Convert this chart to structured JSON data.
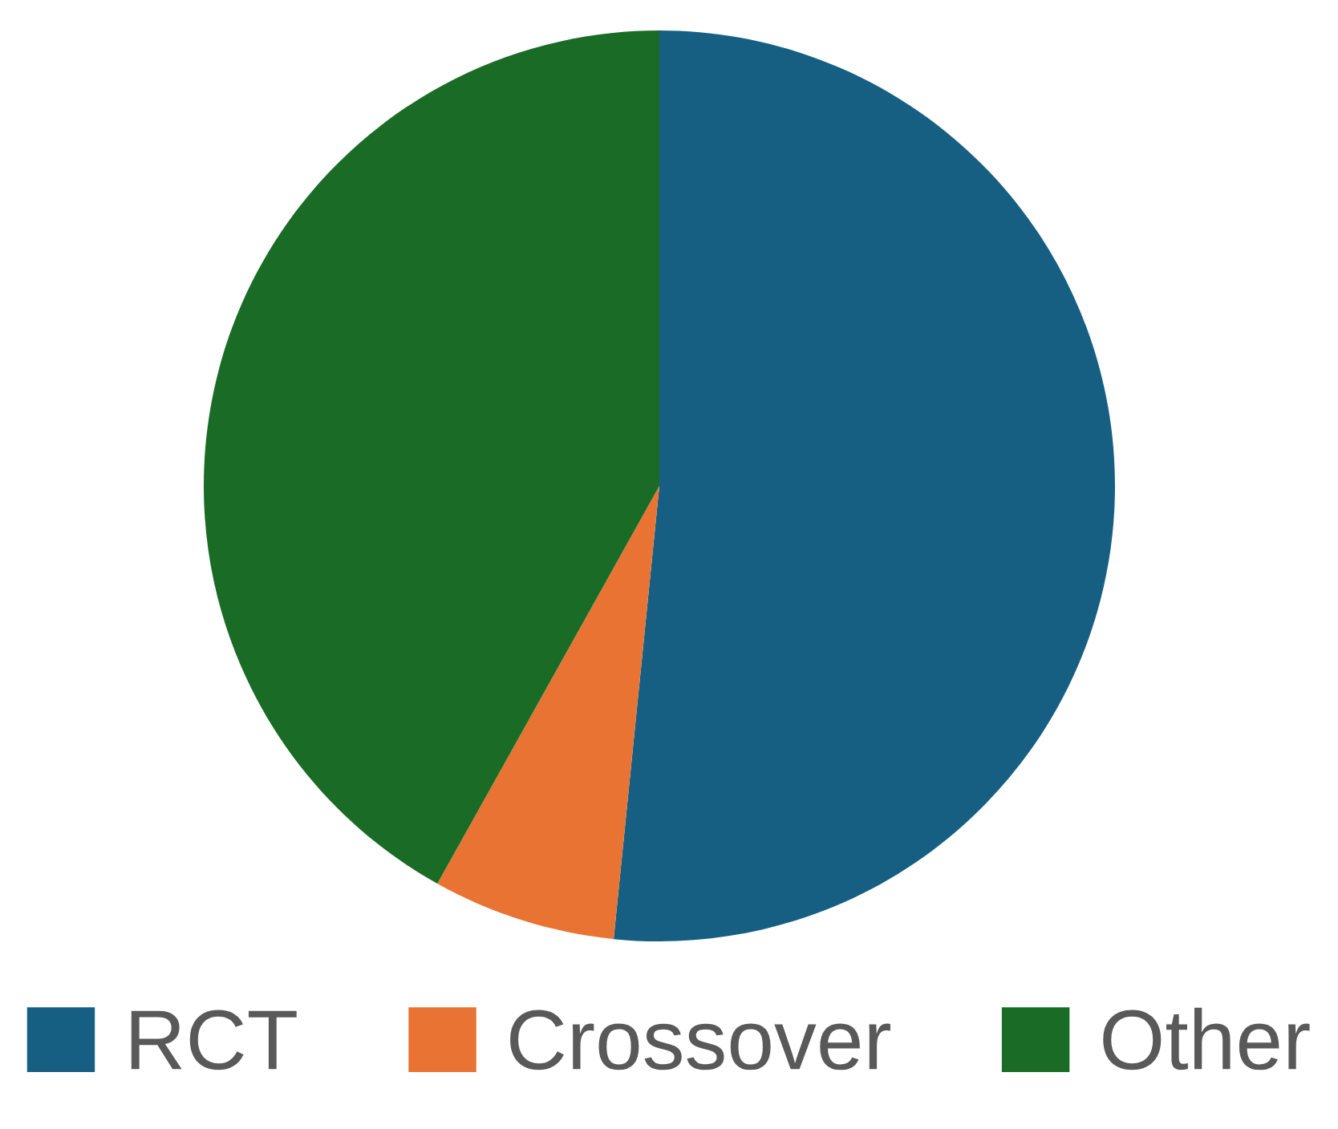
{
  "chart_data": {
    "type": "pie",
    "categories": [
      "RCT",
      "Crossover",
      "Other"
    ],
    "values": [
      51.6,
      6.5,
      41.9
    ],
    "colors": [
      "#165f83",
      "#e87332",
      "#1a6b26"
    ],
    "legend": "bottom"
  }
}
